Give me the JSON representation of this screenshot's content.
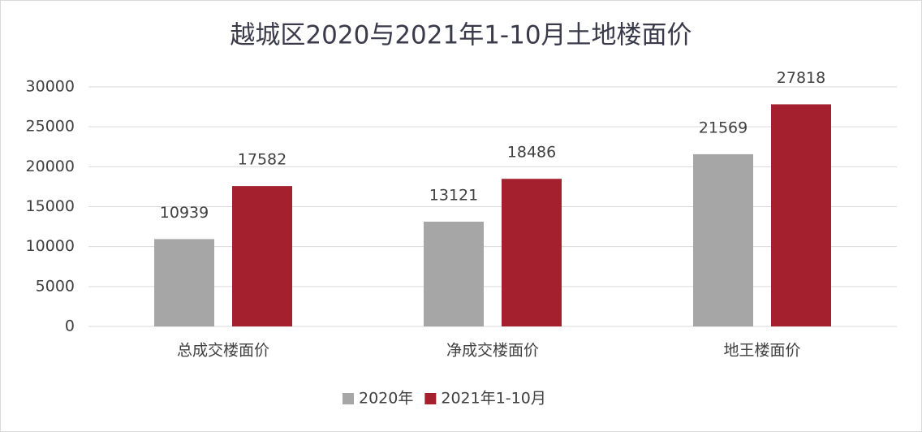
{
  "chart_data": {
    "type": "bar",
    "title": "越城区2020与2021年1-10月土地楼面价",
    "categories": [
      "总成交楼面价",
      "净成交楼面价",
      "地王楼面价"
    ],
    "series": [
      {
        "name": "2020年",
        "color": "#a6a6a6",
        "values": [
          10939,
          13121,
          21569
        ]
      },
      {
        "name": "2021年1-10月",
        "color": "#a5202e",
        "values": [
          17582,
          18486,
          27818
        ]
      }
    ],
    "ylim": [
      0,
      30000
    ],
    "yticks": [
      0,
      5000,
      10000,
      15000,
      20000,
      25000,
      30000
    ],
    "grid": true,
    "legend": "bottom"
  }
}
